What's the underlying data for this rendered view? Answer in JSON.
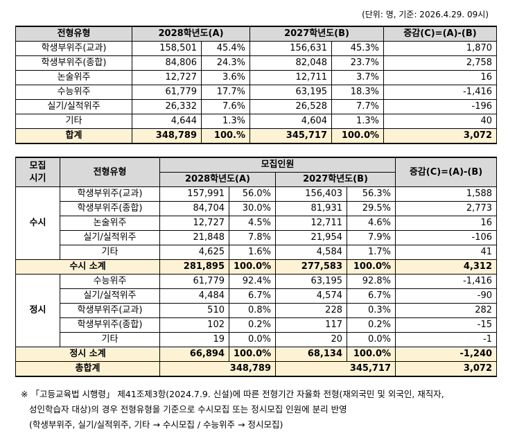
{
  "unit_note": "(단위: 명, 기준: 2026.4.29. 09시)",
  "table1": {
    "header": [
      "전형유형",
      "2028학년도(A)",
      "2027학년도(B)",
      "증감(C)=(A)-(B)"
    ],
    "rows": [
      [
        "학생부위주(교과)",
        "158,501",
        "45.4%",
        "156,631",
        "45.3%",
        "1,870"
      ],
      [
        "학생부위주(종합)",
        "84,806",
        "24.3%",
        "82,048",
        "23.7%",
        "2,758"
      ],
      [
        "논술위주",
        "12,727",
        "3.6%",
        "12,711",
        "3.7%",
        "16"
      ],
      [
        "수능위주",
        "61,779",
        "17.7%",
        "63,195",
        "18.3%",
        "-1,416"
      ],
      [
        "실기/실적위주",
        "26,332",
        "7.6%",
        "26,528",
        "7.7%",
        "-196"
      ],
      [
        "기타",
        "4,644",
        "1.3%",
        "4,604",
        "1.3%",
        "40"
      ]
    ],
    "total": [
      "합계",
      "348,789",
      "100.%",
      "345,717",
      "100.0%",
      "3,072"
    ]
  },
  "table2": {
    "header_period": [
      "모집",
      "시기"
    ],
    "header_type": "전형유형",
    "header_recruit": "모집인원",
    "header_diff": "증감(C)=(A)-(B)",
    "sub_headers": [
      "2028학년도(A)",
      "2027학년도(B)"
    ],
    "groups": [
      {
        "period": "수시",
        "rows": [
          [
            "학생부위주(교과)",
            "157,991",
            "56.0%",
            "156,403",
            "56.3%",
            "1,588"
          ],
          [
            "학생부위주(종합)",
            "84,704",
            "30.0%",
            "81,931",
            "29.5%",
            "2,773"
          ],
          [
            "논술위주",
            "12,727",
            "4.5%",
            "12,711",
            "4.6%",
            "16"
          ],
          [
            "실기/실적위주",
            "21,848",
            "7.8%",
            "21,954",
            "7.9%",
            "-106"
          ],
          [
            "기타",
            "4,625",
            "1.6%",
            "4,584",
            "1.7%",
            "41"
          ]
        ],
        "subtotal": [
          "수시 소계",
          "281,895",
          "100.0%",
          "277,583",
          "100.0%",
          "4,312"
        ]
      },
      {
        "period": "정시",
        "rows": [
          [
            "수능위주",
            "61,779",
            "92.4%",
            "63,195",
            "92.8%",
            "-1,416"
          ],
          [
            "실기/실적위주",
            "4,484",
            "6.7%",
            "4,574",
            "6.7%",
            "-90"
          ],
          [
            "학생부위주(교과)",
            "510",
            "0.8%",
            "228",
            "0.3%",
            "282"
          ],
          [
            "학생부위주(종합)",
            "102",
            "0.2%",
            "117",
            "0.2%",
            "-15"
          ],
          [
            "기타",
            "19",
            "0.0%",
            "20",
            "0.0%",
            "-1"
          ]
        ],
        "subtotal": [
          "정시 소계",
          "66,894",
          "100.0%",
          "68,134",
          "100.0%",
          "-1,240"
        ]
      }
    ],
    "grand_total": [
      "총합계",
      "348,789",
      "345,717",
      "3,072"
    ]
  },
  "note_lines": [
    "※ 「고등교육법 시행령」 제41조제3항(2024.7.9. 신설)에 따른 전형기간 자율화 전형(재외국민 및 외국인, 재직자,",
    "성인학습자 대상)의 경우 전형유형을 기준으로 수시모집 또는 정시모집 인원에 분리 반영",
    "(학생부위주, 실기/실적위주, 기타 → 수시모집 / 수능위주 → 정시모집)"
  ]
}
